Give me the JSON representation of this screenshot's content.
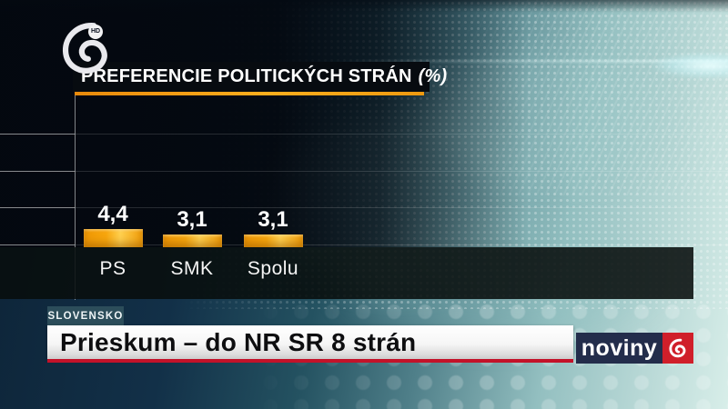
{
  "channel": {
    "hd_badge": "HD"
  },
  "chart": {
    "title_main": "PREFERENCIE POLITICKÝCH STRÁN",
    "title_suffix": "(%)"
  },
  "chart_data": {
    "type": "bar",
    "title": "PREFERENCIE POLITICKÝCH STRÁN (%)",
    "categories": [
      "PS",
      "SMK",
      "Spolu"
    ],
    "values": [
      4.4,
      3.1,
      3.1
    ],
    "value_labels": [
      "4,4",
      "3,1",
      "3,1"
    ],
    "unit": "%",
    "bar_color": "#f5a012",
    "gridlines": true,
    "legend": false
  },
  "lower_third": {
    "kicker": "SLOVENSKO",
    "headline": "Prieskum – do NR SR 8 strán"
  },
  "branding": {
    "news_logo_text": "noviny"
  },
  "colors": {
    "bar_orange": "#f5a012",
    "underline_orange": "#f09d1a",
    "headline_red": "#c31229",
    "kicker_teal": "#2c4d5a",
    "logo_navy": "#232d4b",
    "logo_red": "#d01f2a"
  }
}
